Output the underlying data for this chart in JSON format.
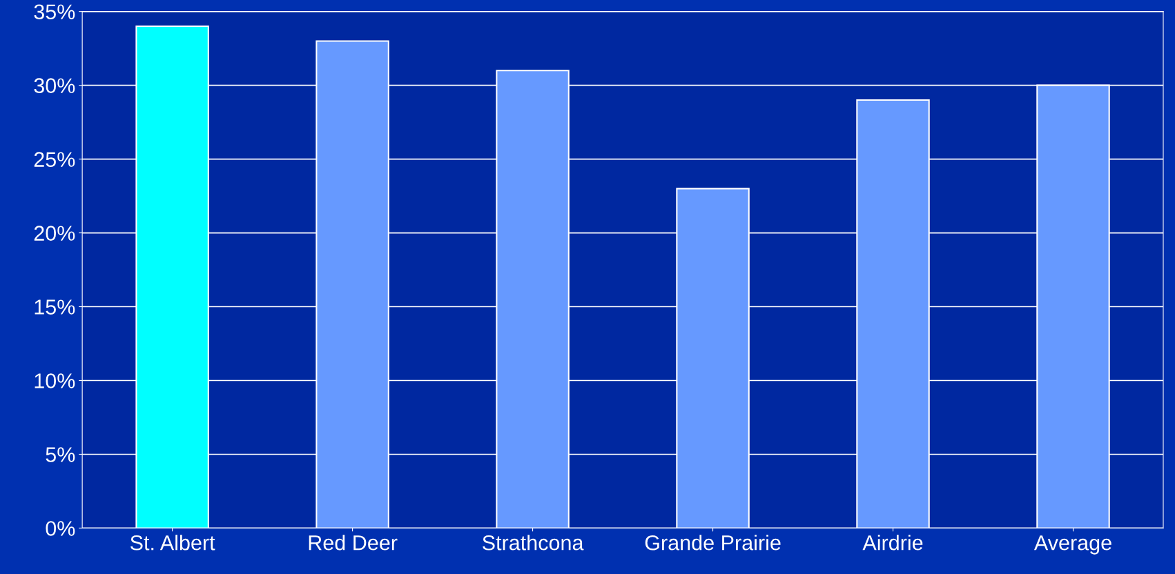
{
  "chart_data": {
    "type": "bar",
    "categories": [
      "St. Albert",
      "Red Deer",
      "Strathcona",
      "Grande Prairie",
      "Airdrie",
      "Average"
    ],
    "values": [
      34,
      33,
      31,
      23,
      29,
      30
    ],
    "colors": [
      "#00ffff",
      "#6699ff",
      "#6699ff",
      "#6699ff",
      "#6699ff",
      "#6699ff"
    ],
    "ylim": [
      0,
      35
    ],
    "yticks": [
      {
        "value": 0,
        "label": "0%"
      },
      {
        "value": 5,
        "label": "5%"
      },
      {
        "value": 10,
        "label": "10%"
      },
      {
        "value": 15,
        "label": "15%"
      },
      {
        "value": 20,
        "label": "20%"
      },
      {
        "value": 25,
        "label": "25%"
      },
      {
        "value": 30,
        "label": "30%"
      },
      {
        "value": 35,
        "label": "35%"
      }
    ],
    "grid": "y"
  }
}
